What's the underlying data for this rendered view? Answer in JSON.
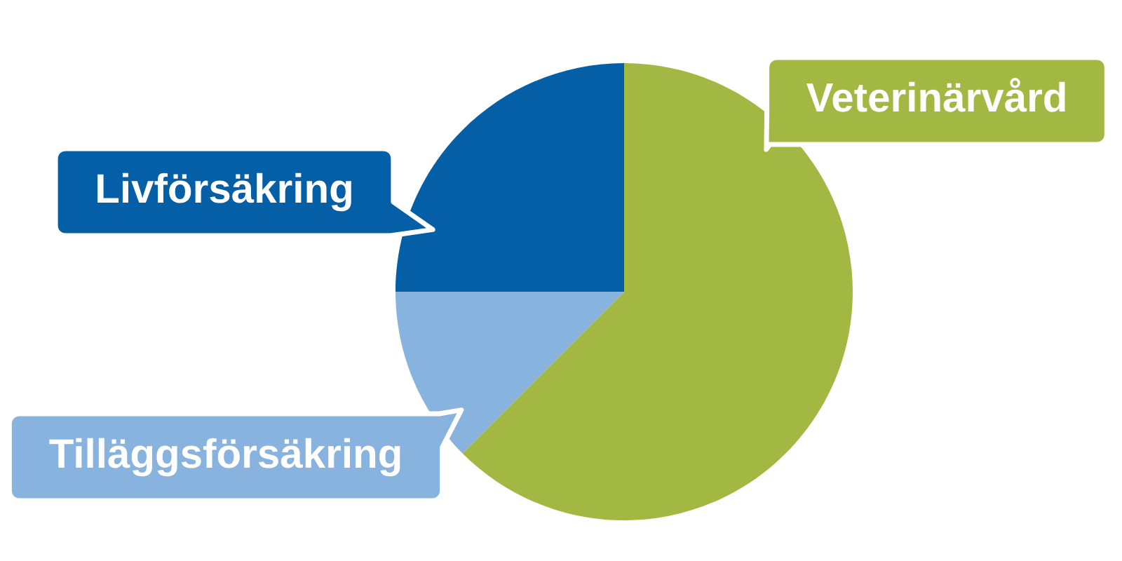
{
  "chart_data": {
    "type": "pie",
    "categories": [
      "Livförsäkring",
      "Tilläggsförsäkring",
      "Veterinärvård"
    ],
    "values": [
      25,
      12.5,
      62.5
    ],
    "colors": [
      "#055fa7",
      "#88b3de",
      "#a2b842"
    ]
  }
}
